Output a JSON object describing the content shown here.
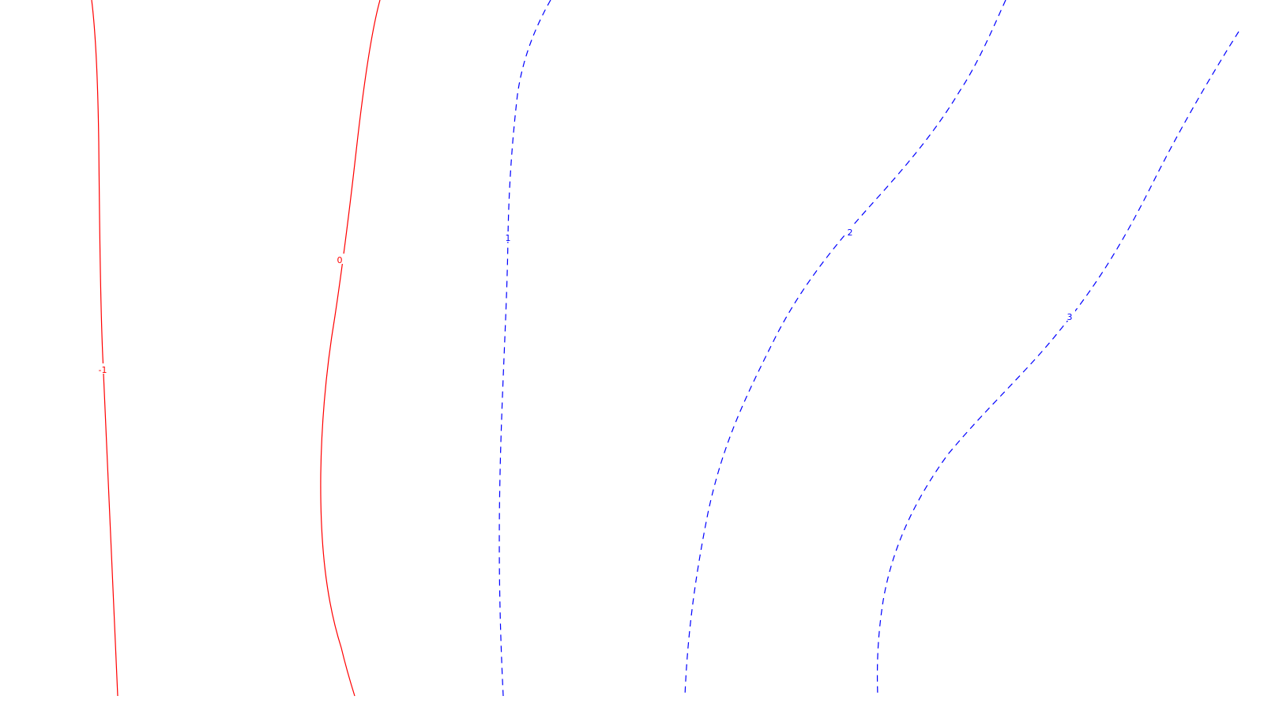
{
  "chart_data": {
    "type": "contour",
    "colors": {
      "negative_and_zero": "#ff0000",
      "positive": "#0000ff"
    },
    "line_styles": {
      "negative_and_zero": "solid",
      "positive": "dashed"
    },
    "contours": [
      {
        "level": -1,
        "label": "-1",
        "style": "solid",
        "color": "#ff0000"
      },
      {
        "level": 0,
        "label": "0",
        "style": "solid",
        "color": "#ff0000"
      },
      {
        "level": 1,
        "label": "1",
        "style": "dashed",
        "color": "#0000ff"
      },
      {
        "level": 2,
        "label": "2",
        "style": "dashed",
        "color": "#0000ff"
      },
      {
        "level": 3,
        "label": "3",
        "style": "dashed",
        "color": "#0000ff"
      }
    ]
  }
}
